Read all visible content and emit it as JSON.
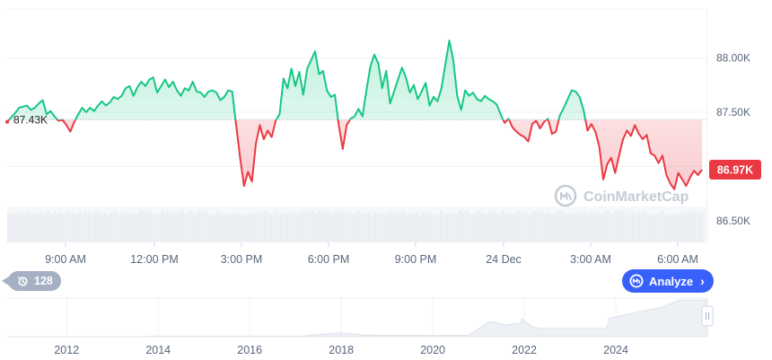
{
  "chart_data": {
    "type": "area",
    "base_value": 87430,
    "base_label": "87.43K",
    "current_label": "86.97K",
    "y_ticks": [
      {
        "value": 88000,
        "label": "88.00K"
      },
      {
        "value": 87500,
        "label": "87.50K"
      },
      {
        "value": 86500,
        "label": "86.50K"
      }
    ],
    "x_ticks": [
      "9:00 AM",
      "12:00 PM",
      "3:00 PM",
      "6:00 PM",
      "9:00 PM",
      "24 Dec",
      "3:00 AM",
      "6:00 AM"
    ],
    "ylim": [
      86300,
      88450
    ],
    "series": [
      {
        "values": [
          87410,
          87450,
          87490,
          87540,
          87550,
          87560,
          87520,
          87540,
          87580,
          87610,
          87480,
          87510,
          87460,
          87420,
          87430,
          87380,
          87320,
          87410,
          87480,
          87540,
          87500,
          87540,
          87510,
          87560,
          87600,
          87560,
          87590,
          87640,
          87620,
          87650,
          87720,
          87740,
          87650,
          87730,
          87780,
          87740,
          87800,
          87820,
          87680,
          87740,
          87800,
          87730,
          87780,
          87700,
          87650,
          87720,
          87700,
          87780,
          87690,
          87680,
          87640,
          87690,
          87700,
          87680,
          87610,
          87640,
          87700,
          87690,
          87380,
          87080,
          86820,
          86950,
          86860,
          87210,
          87380,
          87250,
          87330,
          87270,
          87420,
          87480,
          87810,
          87720,
          87900,
          87740,
          87870,
          87660,
          87900,
          87980,
          88060,
          87850,
          87880,
          87700,
          87640,
          87660,
          87380,
          87160,
          87380,
          87440,
          87460,
          87530,
          87460,
          87700,
          87920,
          88030,
          87950,
          87720,
          87880,
          87580,
          87690,
          87800,
          87910,
          87820,
          87680,
          87750,
          87620,
          87690,
          87770,
          87560,
          87640,
          87600,
          87720,
          87940,
          88160,
          87980,
          87650,
          87520,
          87700,
          87650,
          87680,
          87620,
          87600,
          87650,
          87620,
          87600,
          87570,
          87480,
          87400,
          87440,
          87360,
          87320,
          87290,
          87270,
          87230,
          87390,
          87420,
          87350,
          87410,
          87440,
          87300,
          87320,
          87470,
          87540,
          87620,
          87700,
          87690,
          87640,
          87520,
          87330,
          87390,
          87320,
          87180,
          86880,
          87020,
          87080,
          86940,
          87100,
          87250,
          87330,
          87280,
          87380,
          87300,
          87250,
          87290,
          87120,
          87100,
          87030,
          87100,
          86920,
          86840,
          86790,
          86940,
          86880,
          86820,
          86900,
          86960,
          86920,
          86970
        ]
      }
    ],
    "colors": {
      "up": "#16c784",
      "down": "#ea3943",
      "grid": "#eff2f5",
      "text": "#58667e"
    },
    "overview": {
      "x_ticks": [
        "2012",
        "2014",
        "2016",
        "2018",
        "2020",
        "2022",
        "2024"
      ],
      "range_start": 2010.7,
      "range_end": 2026.0
    }
  },
  "ui": {
    "chip_count": "128",
    "analyze_label": "Analyze",
    "watermark": "CoinMarketCap",
    "colors": {
      "brand": "#3861fb",
      "chip": "#a6b0c3"
    }
  }
}
